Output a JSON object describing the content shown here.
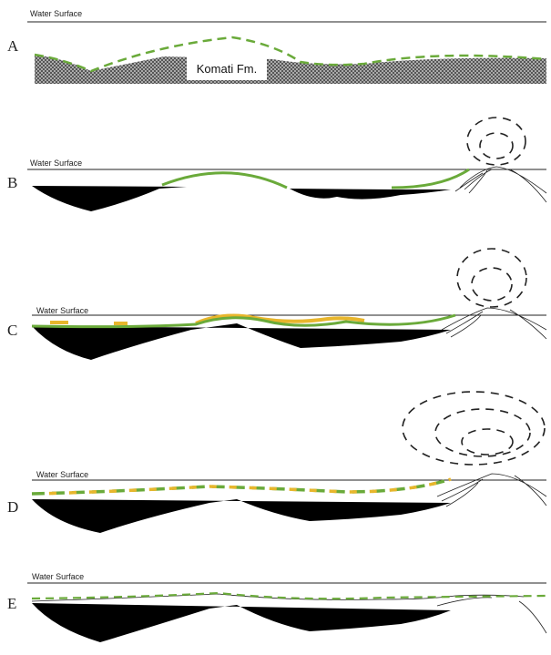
{
  "panels": [
    {
      "label": "A",
      "water_label": "Water Surface",
      "formation_label": "Komati Fm."
    },
    {
      "label": "B",
      "water_label": "Water Surface"
    },
    {
      "label": "C",
      "water_label": "Water Surface"
    },
    {
      "label": "D",
      "water_label": "Water Surface"
    },
    {
      "label": "E",
      "water_label": "Water Surface"
    }
  ]
}
